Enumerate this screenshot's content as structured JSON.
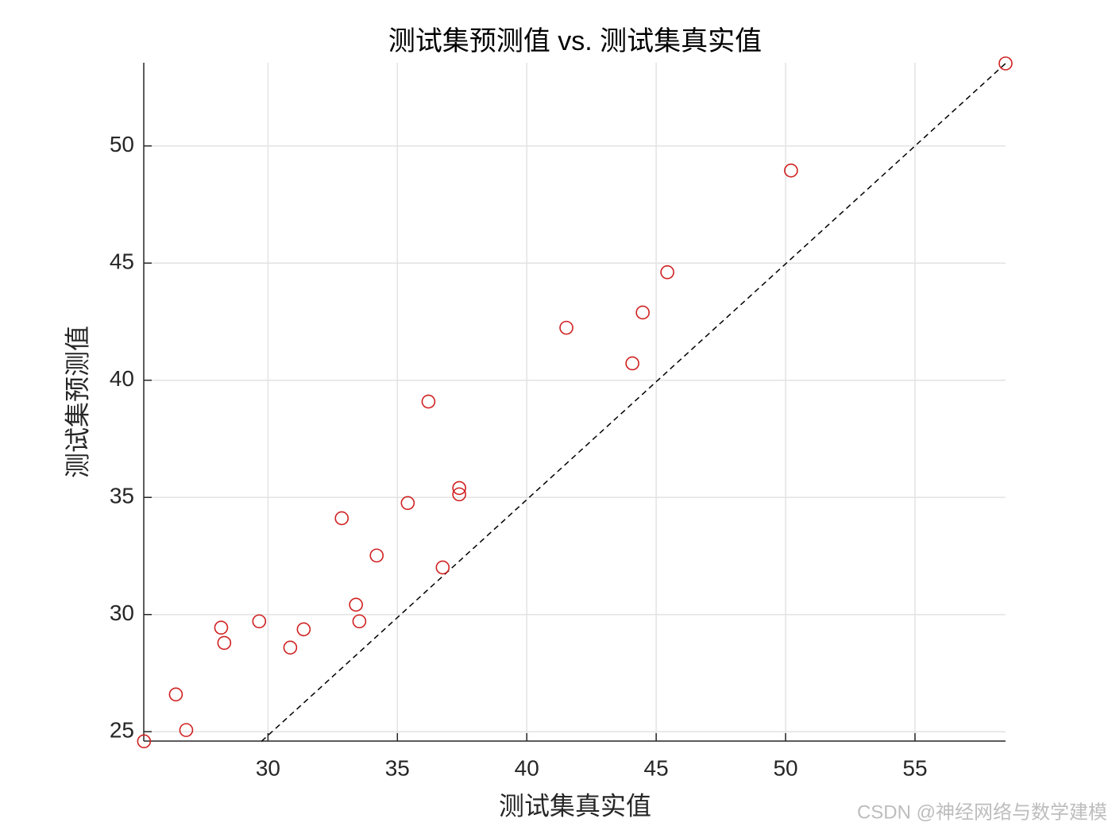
{
  "chart_data": {
    "type": "scatter",
    "title": "测试集预测值 vs. 测试集真实值",
    "xlabel": "测试集真实值",
    "ylabel": "测试集预测值",
    "watermark": "CSDN @神经网络与数学建模",
    "series": [
      {
        "color": "#d02020",
        "x": [
          25.21,
          26.44,
          26.84,
          28.19,
          28.31,
          29.66,
          30.86,
          31.38,
          32.85,
          33.4,
          33.53,
          34.2,
          35.4,
          36.2,
          36.75,
          37.39,
          37.39,
          41.53,
          44.08,
          44.48,
          45.43,
          50.21,
          58.5
        ],
        "values": [
          24.59,
          26.59,
          25.07,
          29.44,
          28.79,
          29.71,
          28.59,
          29.37,
          34.11,
          30.42,
          29.71,
          32.52,
          34.76,
          39.09,
          32.01,
          35.4,
          35.13,
          42.24,
          40.72,
          42.89,
          44.61,
          48.95,
          53.52
        ]
      }
    ],
    "reference_line": {
      "x": [
        29.75,
        58.5
      ],
      "values": [
        24.59,
        53.52
      ],
      "color": "#000000",
      "dashed": true
    },
    "xlim": [
      25.2,
      58.5
    ],
    "ylim": [
      24.6,
      53.55
    ],
    "xticks": [
      30,
      35,
      40,
      45,
      50,
      55
    ],
    "yticks": [
      25,
      30,
      35,
      40,
      45,
      50
    ],
    "grid": true
  }
}
